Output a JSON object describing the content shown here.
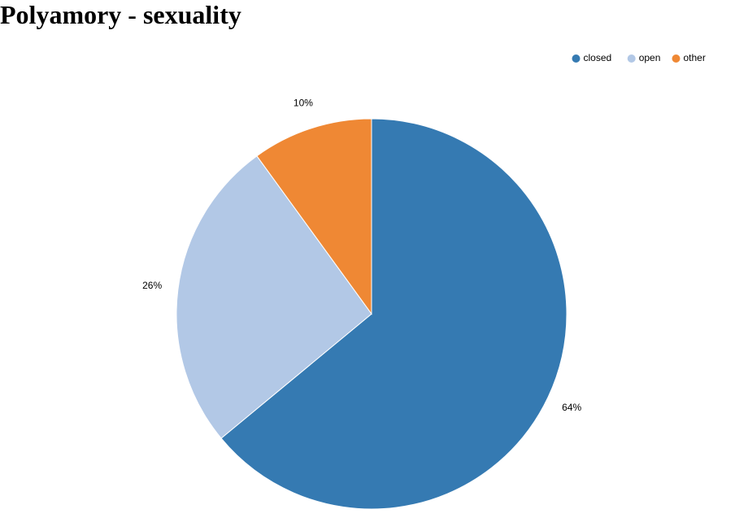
{
  "chart_data": {
    "type": "pie",
    "title": "Polyamory - sexuality",
    "legend_position": "top-right",
    "slices": [
      {
        "name": "closed",
        "value": 64,
        "label": "64%",
        "color": "#357ab2"
      },
      {
        "name": "open",
        "value": 26,
        "label": "26%",
        "color": "#b2c8e6"
      },
      {
        "name": "other",
        "value": 10,
        "label": "10%",
        "color": "#ef8834"
      }
    ]
  }
}
